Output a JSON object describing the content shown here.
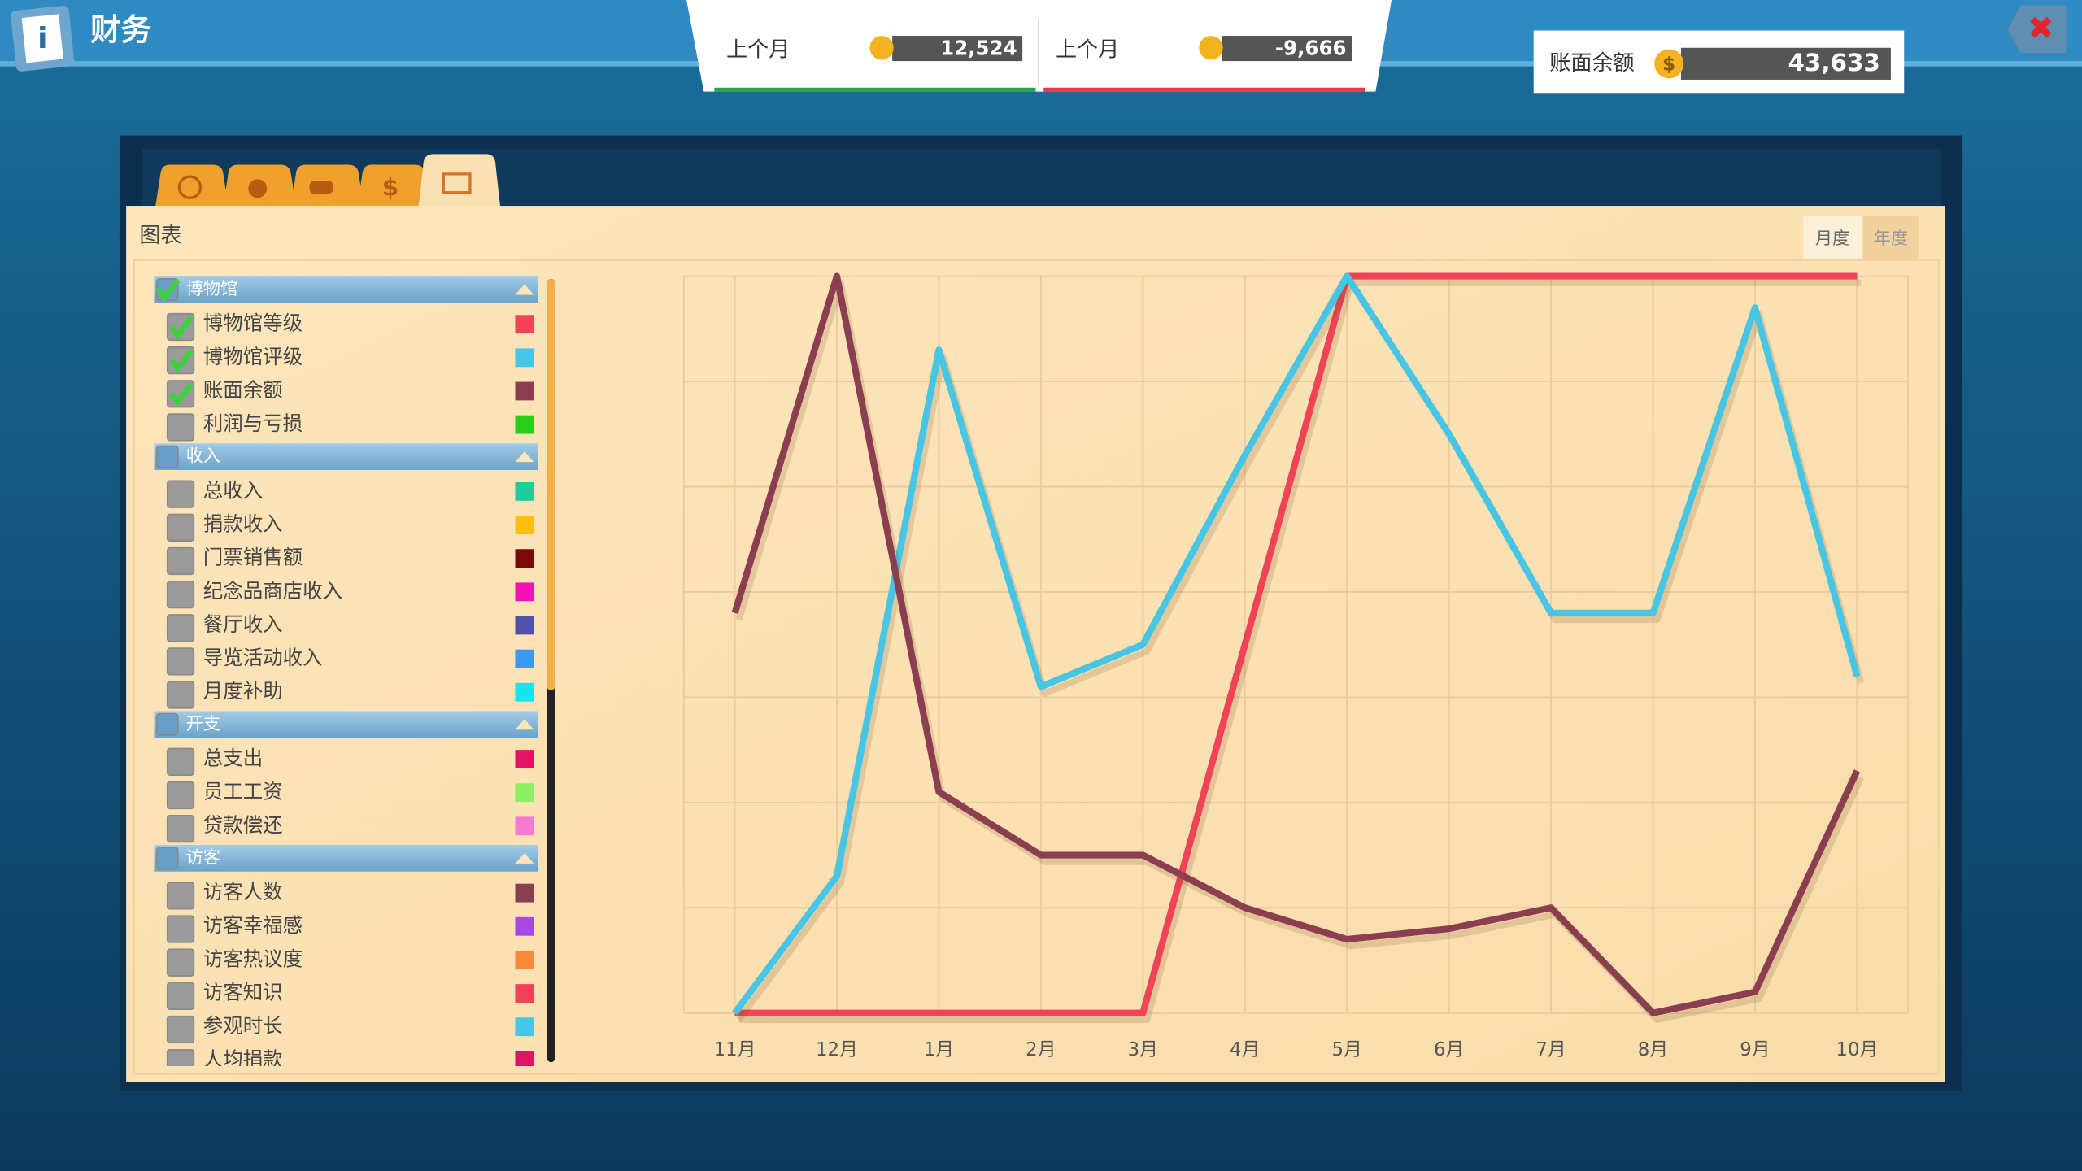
{
  "header": {
    "title": "财务"
  },
  "stats": [
    {
      "label": "上个月",
      "value": "12,524",
      "color": "#2aa64a"
    },
    {
      "label": "上个月",
      "value": "-9,666",
      "color": "#e23a4a"
    }
  ],
  "balance": {
    "label": "账面余额",
    "value": "43,633"
  },
  "panel": {
    "title": "图表",
    "toggle": [
      "月度",
      "年度"
    ]
  },
  "legend_groups": [
    {
      "label": "博物馆",
      "checked": true,
      "items": [
        {
          "label": "博物馆等级",
          "color": "#f0435a",
          "checked": true
        },
        {
          "label": "博物馆评级",
          "color": "#46c6e4",
          "checked": true
        },
        {
          "label": "账面余额",
          "color": "#8a3e50",
          "checked": true
        },
        {
          "label": "利润与亏损",
          "color": "#2ccc1a",
          "checked": false
        }
      ]
    },
    {
      "label": "收入",
      "checked": false,
      "items": [
        {
          "label": "总收入",
          "color": "#1ecc9a",
          "checked": false
        },
        {
          "label": "捐款收入",
          "color": "#ffbe14",
          "checked": false
        },
        {
          "label": "门票销售额",
          "color": "#7a0a0a",
          "checked": false
        },
        {
          "label": "纪念品商店收入",
          "color": "#f014b4",
          "checked": false
        },
        {
          "label": "餐厅收入",
          "color": "#5052a8",
          "checked": false
        },
        {
          "label": "导览活动收入",
          "color": "#3a98f0",
          "checked": false
        },
        {
          "label": "月度补助",
          "color": "#14e6f0",
          "checked": false
        }
      ]
    },
    {
      "label": "开支",
      "checked": false,
      "items": [
        {
          "label": "总支出",
          "color": "#e01464",
          "checked": false
        },
        {
          "label": "员工工资",
          "color": "#8af064",
          "checked": false
        },
        {
          "label": "贷款偿还",
          "color": "#f87ad0",
          "checked": false
        }
      ]
    },
    {
      "label": "访客",
      "checked": false,
      "items": [
        {
          "label": "访客人数",
          "color": "#8a3e50",
          "checked": false
        },
        {
          "label": "访客幸福感",
          "color": "#a846e8",
          "checked": false
        },
        {
          "label": "访客热议度",
          "color": "#f88a3a",
          "checked": false
        },
        {
          "label": "访客知识",
          "color": "#f0435a",
          "checked": false
        },
        {
          "label": "参观时长",
          "color": "#46c6e4",
          "checked": false
        },
        {
          "label": "人均捐款",
          "color": "#e01464",
          "checked": false
        }
      ]
    }
  ],
  "chart_data": {
    "type": "line",
    "categories": [
      "11月",
      "12月",
      "1月",
      "2月",
      "3月",
      "4月",
      "5月",
      "6月",
      "7月",
      "8月",
      "9月",
      "10月"
    ],
    "series": [
      {
        "color": "#f0435a",
        "values": [
          0,
          0,
          0,
          0,
          0,
          3.5,
          7,
          7,
          7,
          7,
          7,
          7
        ]
      },
      {
        "color": "#46c6e4",
        "values": [
          0,
          1.3,
          6.3,
          3.1,
          3.5,
          5.3,
          7,
          5.5,
          3.8,
          3.8,
          6.7,
          3.2
        ]
      },
      {
        "color": "#8a3e50",
        "values": [
          3.8,
          7,
          2.1,
          1.5,
          1.5,
          1,
          0.7,
          0.8,
          1,
          0,
          0.2,
          2.3
        ]
      }
    ],
    "ylim": [
      0,
      7
    ],
    "yticks": [
      0,
      1,
      2,
      3,
      4,
      5,
      6,
      7
    ],
    "grid": true,
    "ytick_labels": false
  }
}
